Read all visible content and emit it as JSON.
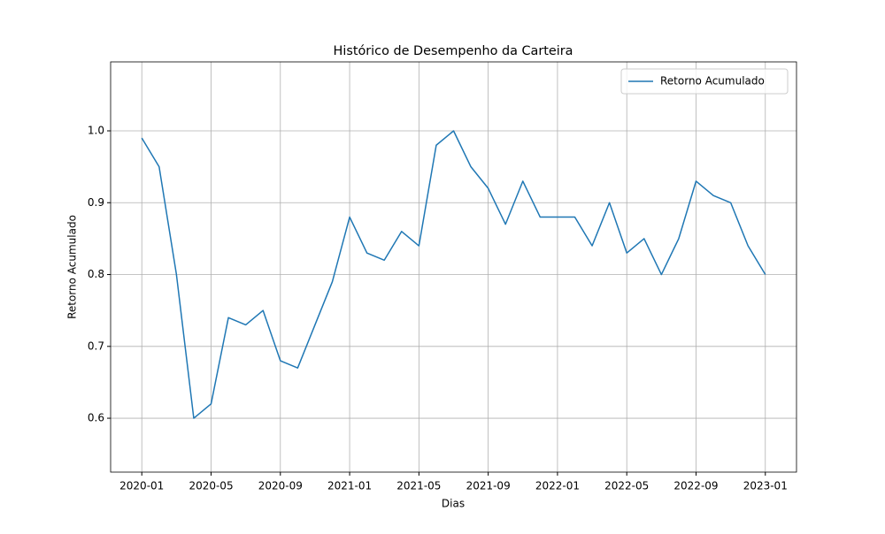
{
  "chart_data": {
    "type": "line",
    "title": "Histórico de Desempenho da Carteira",
    "xlabel": "Dias",
    "ylabel": "Retorno Acumulado",
    "x": [
      "2020-01",
      "2020-02",
      "2020-03",
      "2020-04",
      "2020-05",
      "2020-06",
      "2020-07",
      "2020-08",
      "2020-09",
      "2020-10",
      "2020-11",
      "2020-12",
      "2021-01",
      "2021-02",
      "2021-03",
      "2021-04",
      "2021-05",
      "2021-06",
      "2021-07",
      "2021-08",
      "2021-09",
      "2021-10",
      "2021-11",
      "2021-12",
      "2022-01",
      "2022-02",
      "2022-03",
      "2022-04",
      "2022-05",
      "2022-06",
      "2022-07",
      "2022-08",
      "2022-09",
      "2022-10",
      "2022-11",
      "2022-12",
      "2023-01"
    ],
    "series": [
      {
        "name": "Retorno Acumulado",
        "color": "#1f77b4",
        "values": [
          0.99,
          0.95,
          0.8,
          0.6,
          0.62,
          0.74,
          0.73,
          0.75,
          0.68,
          0.67,
          0.73,
          0.79,
          0.88,
          0.83,
          0.82,
          0.86,
          0.84,
          0.98,
          1.0,
          0.95,
          0.92,
          0.87,
          0.93,
          0.88,
          0.88,
          0.88,
          0.84,
          0.9,
          0.83,
          0.85,
          0.8,
          0.85,
          0.93,
          0.91,
          0.9,
          0.84,
          0.8
        ]
      }
    ],
    "ylim": [
      0.525,
      1.096
    ],
    "yticks": [
      0.6,
      0.7,
      0.8,
      0.9,
      {
        "value": 1.0,
        "label": "1.0"
      }
    ],
    "xticks": [
      "2020-01",
      "2020-05",
      "2020-09",
      "2021-01",
      "2021-05",
      "2021-09",
      "2022-01",
      "2022-05",
      "2022-09",
      "2023-01"
    ],
    "grid": true,
    "legend": "upper right"
  }
}
